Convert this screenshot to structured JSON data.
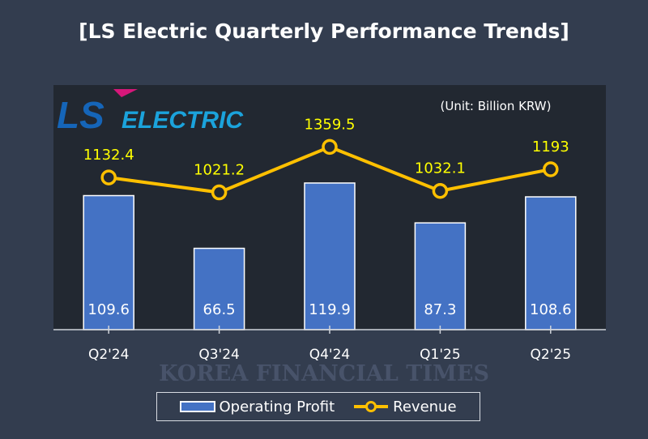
{
  "chart_data": {
    "type": "bar+line",
    "title": "[LS Electric Quarterly Performance Trends]",
    "unit_note": "(Unit: Billion KRW)",
    "logo_text": "LS ELECTRIC",
    "watermark": "KOREA FINANCIAL TIMES",
    "categories": [
      "Q2'24",
      "Q3'24",
      "Q4'24",
      "Q1'25",
      "Q2'25"
    ],
    "series": [
      {
        "name": "Operating Profit",
        "type": "bar",
        "values": [
          109.6,
          66.5,
          119.9,
          87.3,
          108.6
        ],
        "color": "#4472c4",
        "axis_range": [
          0,
          200
        ]
      },
      {
        "name": "Revenue",
        "type": "line",
        "values": [
          1132.4,
          1021.2,
          1359.5,
          1032.1,
          1193
        ],
        "color": "#ffc000",
        "axis_range": [
          0,
          1820
        ]
      }
    ],
    "legend_position": "bottom",
    "grid": false
  },
  "colors": {
    "background": "#333d4f",
    "plot_background": "#222831",
    "line_label": "#ffff00"
  }
}
